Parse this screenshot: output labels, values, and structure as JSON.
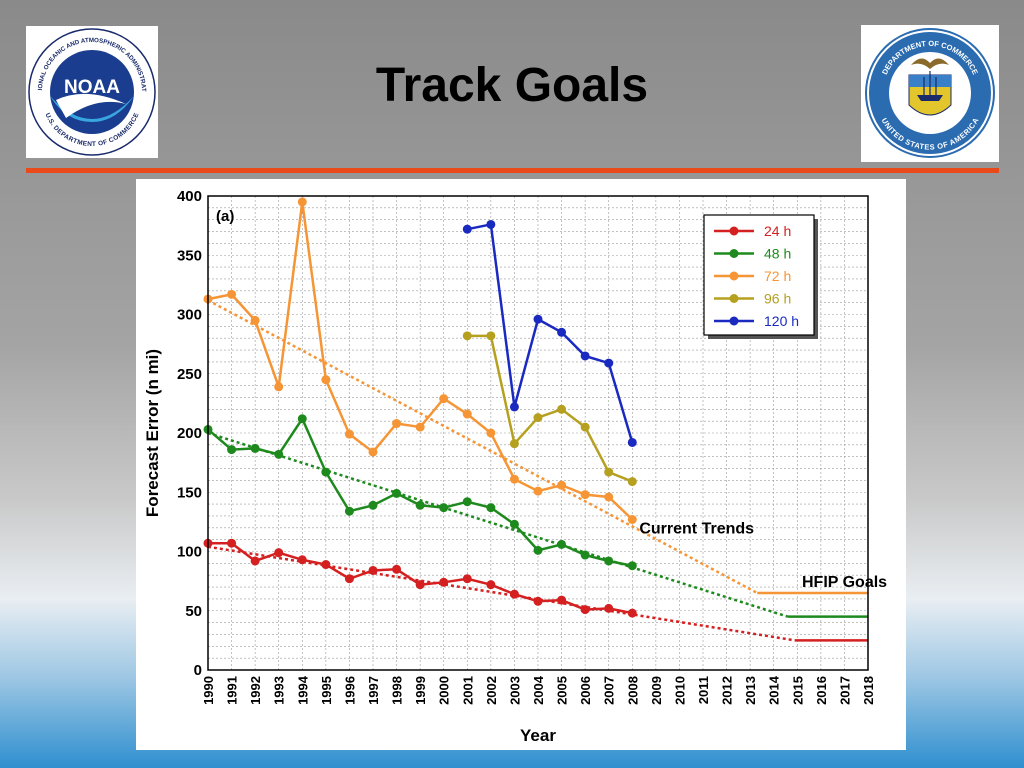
{
  "slide": {
    "title": "Track Goals",
    "logos": [
      {
        "name": "noaa-logo",
        "text_top": "NATIONAL OCEANIC AND ATMOSPHERIC ADMINISTRATION",
        "text_bottom": "U.S. DEPARTMENT OF COMMERCE",
        "wordmark": "NOAA"
      },
      {
        "name": "department-of-commerce-seal",
        "text_top": "DEPARTMENT OF COMMERCE",
        "text_bottom": "UNITED STATES OF AMERICA"
      }
    ],
    "divider_color": "#e84a1c"
  },
  "chart_data": {
    "type": "line",
    "panel_label": "(a)",
    "xlabel": "Year",
    "ylabel": "Forecast Error (n mi)",
    "xlim": [
      1990,
      2018
    ],
    "ylim": [
      0,
      400
    ],
    "x_ticks": [
      1990,
      1991,
      1992,
      1993,
      1994,
      1995,
      1996,
      1997,
      1998,
      1999,
      2000,
      2001,
      2002,
      2003,
      2004,
      2005,
      2006,
      2007,
      2008,
      2009,
      2010,
      2011,
      2012,
      2013,
      2014,
      2015,
      2016,
      2017,
      2018
    ],
    "y_ticks": [
      0,
      50,
      100,
      150,
      200,
      250,
      300,
      350,
      400
    ],
    "grid": true,
    "legend_position": "top-right",
    "series": [
      {
        "name": "24 h",
        "color": "#d42020",
        "x": [
          1990,
          1991,
          1992,
          1993,
          1994,
          1995,
          1996,
          1997,
          1998,
          1999,
          2000,
          2001,
          2002,
          2003,
          2004,
          2005,
          2006,
          2007,
          2008
        ],
        "y": [
          107,
          107,
          92,
          99,
          93,
          89,
          77,
          84,
          85,
          72,
          74,
          77,
          72,
          64,
          58,
          59,
          51,
          52,
          48
        ]
      },
      {
        "name": "48 h",
        "color": "#1e8a1e",
        "x": [
          1990,
          1991,
          1992,
          1993,
          1994,
          1995,
          1996,
          1997,
          1998,
          1999,
          2000,
          2001,
          2002,
          2003,
          2004,
          2005,
          2006,
          2007,
          2008
        ],
        "y": [
          203,
          186,
          187,
          182,
          212,
          167,
          134,
          139,
          149,
          139,
          137,
          142,
          137,
          123,
          101,
          106,
          97,
          92,
          88
        ]
      },
      {
        "name": "72 h",
        "color": "#f59535",
        "x": [
          1990,
          1991,
          1992,
          1993,
          1994,
          1995,
          1996,
          1997,
          1998,
          1999,
          2000,
          2001,
          2002,
          2003,
          2004,
          2005,
          2006,
          2007,
          2008
        ],
        "y": [
          313,
          317,
          295,
          239,
          395,
          245,
          199,
          184,
          208,
          205,
          229,
          216,
          200,
          161,
          151,
          156,
          148,
          146,
          127
        ]
      },
      {
        "name": "96 h",
        "color": "#b5a020",
        "x": [
          2001,
          2002,
          2003,
          2004,
          2005,
          2006,
          2007,
          2008
        ],
        "y": [
          282,
          282,
          191,
          213,
          220,
          205,
          167,
          159
        ]
      },
      {
        "name": "120 h",
        "color": "#1a2ac0",
        "x": [
          2001,
          2002,
          2003,
          2004,
          2005,
          2006,
          2007,
          2008
        ],
        "y": [
          372,
          376,
          222,
          296,
          285,
          265,
          259,
          192
        ]
      }
    ],
    "trend_lines": [
      {
        "series": "24 h",
        "color": "#d42020",
        "x": [
          1990,
          2014.9
        ],
        "y": [
          104,
          25
        ]
      },
      {
        "series": "48 h",
        "color": "#1e8a1e",
        "x": [
          1990,
          2014.6
        ],
        "y": [
          200,
          45
        ]
      },
      {
        "series": "72 h",
        "color": "#f59535",
        "x": [
          1990,
          2013.3
        ],
        "y": [
          312,
          65
        ]
      }
    ],
    "goal_lines": [
      {
        "series": "24 h",
        "color": "#d42020",
        "x": [
          2014.9,
          2018
        ],
        "y": 25
      },
      {
        "series": "48 h",
        "color": "#1e8a1e",
        "x": [
          2014.6,
          2018
        ],
        "y": 45
      },
      {
        "series": "72 h",
        "color": "#f59535",
        "x": [
          2013.3,
          2018
        ],
        "y": 65
      }
    ],
    "annotations": [
      {
        "name": "current-trends-label",
        "text": "Current Trends",
        "x": 2008.3,
        "y": 115
      },
      {
        "name": "hfip-goals-label",
        "text": "HFIP Goals",
        "x": 2015.2,
        "y": 70
      }
    ]
  }
}
